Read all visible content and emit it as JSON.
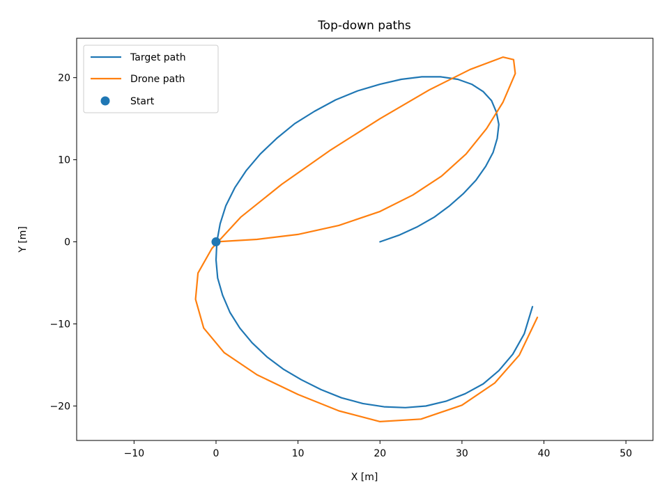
{
  "chart_data": {
    "type": "line",
    "title": "Top-down paths",
    "xlabel": "X [m]",
    "ylabel": "Y [m]",
    "xlim": [
      -17,
      53.3
    ],
    "ylim": [
      -24.2,
      24.8
    ],
    "xticks": [
      -10,
      0,
      10,
      20,
      30,
      40,
      50
    ],
    "yticks": [
      -20,
      -10,
      0,
      10,
      20
    ],
    "xtick_labels": [
      "−10",
      "0",
      "10",
      "20",
      "30",
      "40",
      "50"
    ],
    "ytick_labels": [
      "−20",
      "−10",
      "0",
      "10",
      "20"
    ],
    "grid": false,
    "legend_position": "top-left",
    "legend": [
      "Target path",
      "Drone path",
      "Start"
    ],
    "series": [
      {
        "name": "Target path",
        "color": "#1f77b4",
        "kind": "line",
        "x": [
          20.0,
          22.3,
          24.5,
          26.6,
          28.5,
          30.2,
          31.7,
          32.9,
          33.8,
          34.3,
          34.5,
          34.2,
          33.6,
          32.6,
          31.2,
          29.5,
          27.4,
          25.1,
          22.6,
          20.0,
          17.3,
          14.6,
          12.0,
          9.6,
          7.4,
          5.4,
          3.7,
          2.3,
          1.2,
          0.5,
          0.1,
          0.0,
          0.2,
          0.8,
          1.7,
          2.9,
          4.4,
          6.2,
          8.2,
          10.4,
          12.8,
          15.3,
          17.9,
          20.5,
          23.1,
          25.6,
          28.1,
          30.4,
          32.6,
          34.5,
          36.2,
          37.6,
          38.6
        ],
        "y": [
          0.0,
          0.8,
          1.8,
          3.0,
          4.4,
          5.9,
          7.5,
          9.2,
          10.9,
          12.6,
          14.3,
          15.8,
          17.2,
          18.3,
          19.2,
          19.8,
          20.1,
          20.1,
          19.8,
          19.2,
          18.4,
          17.3,
          15.9,
          14.4,
          12.6,
          10.7,
          8.7,
          6.6,
          4.4,
          2.2,
          0.0,
          -2.2,
          -4.4,
          -6.5,
          -8.6,
          -10.5,
          -12.3,
          -14.0,
          -15.5,
          -16.8,
          -18.0,
          -19.0,
          -19.7,
          -20.1,
          -20.2,
          -20.0,
          -19.4,
          -18.5,
          -17.3,
          -15.7,
          -13.7,
          -11.2,
          -7.9
        ]
      },
      {
        "name": "Drone path",
        "color": "#ff7f0e",
        "kind": "line",
        "x": [
          0.0,
          5.0,
          10.0,
          15.0,
          20.0,
          24.0,
          27.5,
          30.5,
          33.0,
          35.0,
          36.5,
          36.3,
          35.0,
          31.0,
          26.0,
          20.0,
          14.0,
          8.0,
          3.0,
          -0.5,
          -2.2,
          -2.5,
          -1.5,
          1.0,
          5.0,
          10.0,
          15.0,
          20.0,
          25.0,
          30.0,
          34.0,
          37.0,
          39.2
        ],
        "y": [
          0.0,
          0.3,
          0.9,
          2.0,
          3.7,
          5.7,
          8.0,
          10.7,
          13.8,
          17.0,
          20.5,
          22.2,
          22.5,
          21.0,
          18.5,
          15.0,
          11.2,
          7.0,
          3.0,
          -0.8,
          -3.8,
          -7.0,
          -10.5,
          -13.5,
          -16.2,
          -18.6,
          -20.6,
          -21.9,
          -21.6,
          -19.9,
          -17.2,
          -13.8,
          -9.2
        ]
      },
      {
        "name": "Start",
        "color": "#1f77b4",
        "kind": "scatter",
        "x": [
          0.0
        ],
        "y": [
          0.0
        ]
      }
    ]
  }
}
